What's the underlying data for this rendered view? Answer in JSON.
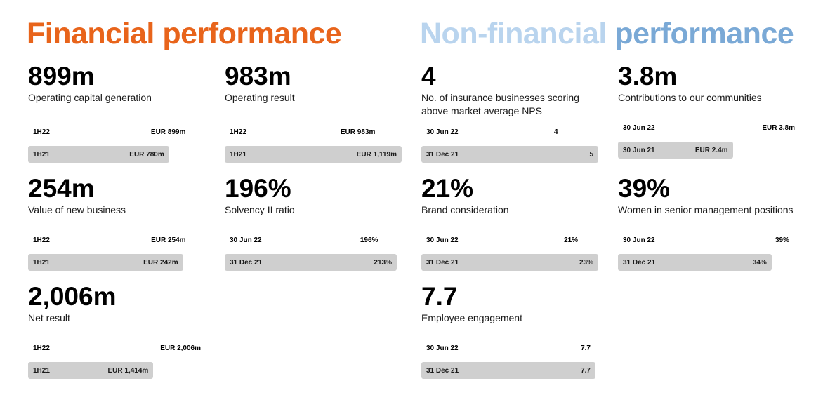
{
  "titles": {
    "financial": "Financial performance",
    "nonfinancial_part1": "Non-financial",
    "nonfinancial_part2": "performance"
  },
  "colors": {
    "financial_accent": "#e8641b",
    "nonfinancial_light": "#b9d4ee",
    "nonfinancial_accent": "#7aa9d6",
    "previous_bar": "#cfcfcf"
  },
  "chart_data": [
    {
      "type": "bar",
      "group": "financial",
      "headline": "899m",
      "label": "Operating capital generation",
      "unit": "EUR m",
      "scale_max": 983,
      "bars": [
        {
          "period": "1H22",
          "value": 899,
          "display": "EUR 899m"
        },
        {
          "period": "1H21",
          "value": 780,
          "display": "EUR 780m"
        }
      ]
    },
    {
      "type": "bar",
      "group": "financial",
      "headline": "983m",
      "label": "Operating result",
      "unit": "EUR m",
      "scale_max": 1119,
      "bars": [
        {
          "period": "1H22",
          "value": 983,
          "display": "EUR 983m"
        },
        {
          "period": "1H21",
          "value": 1119,
          "display": "EUR 1,119m"
        }
      ]
    },
    {
      "type": "bar",
      "group": "financial",
      "headline": "254m",
      "label": "Value of new business",
      "unit": "EUR m",
      "scale_max": 283,
      "bars": [
        {
          "period": "1H22",
          "value": 254,
          "display": "EUR 254m"
        },
        {
          "period": "1H21",
          "value": 242,
          "display": "EUR 242m"
        }
      ]
    },
    {
      "type": "bar",
      "group": "financial",
      "headline": "196%",
      "label": "Solvency II ratio",
      "unit": "%",
      "scale_max": 213,
      "bars": [
        {
          "period": "30 Jun 22",
          "value": 196,
          "display": "196%"
        },
        {
          "period": "31 Dec 21",
          "value": 213,
          "display": "213%"
        }
      ]
    },
    {
      "type": "bar",
      "group": "financial",
      "headline": "2,006m",
      "label": "Net result",
      "unit": "EUR m",
      "scale_max": 2006,
      "bars": [
        {
          "period": "1H22",
          "value": 2006,
          "display": "EUR 2,006m"
        },
        {
          "period": "1H21",
          "value": 1414,
          "display": "EUR 1,414m"
        }
      ]
    },
    {
      "type": "bar",
      "group": "nonfinancial",
      "headline": "4",
      "label": "No. of insurance businesses scoring above market average NPS",
      "label_lines": [
        "No. of insurance businesses scoring",
        "above market average NPS"
      ],
      "unit": "count",
      "scale_max": 5,
      "bars": [
        {
          "period": "30 Jun 22",
          "value": 4,
          "display": "4"
        },
        {
          "period": "31 Dec 21",
          "value": 5,
          "display": "5"
        }
      ]
    },
    {
      "type": "bar",
      "group": "nonfinancial",
      "headline": "3.8m",
      "label": "Contributions to our communities",
      "unit": "EUR m",
      "scale_max": 3.8,
      "bars": [
        {
          "period": "30 Jun 22",
          "value": 3.8,
          "display": "EUR 3.8m"
        },
        {
          "period": "30 Jun 21",
          "value": 2.4,
          "display": "EUR 2.4m"
        }
      ]
    },
    {
      "type": "bar",
      "group": "nonfinancial",
      "headline": "21%",
      "label": "Brand consideration",
      "unit": "%",
      "scale_max": 23,
      "bars": [
        {
          "period": "30 Jun 22",
          "value": 21,
          "display": "21%"
        },
        {
          "period": "31 Dec 21",
          "value": 23,
          "display": "23%"
        }
      ]
    },
    {
      "type": "bar",
      "group": "nonfinancial",
      "headline": "39%",
      "label": "Women in senior management positions",
      "unit": "%",
      "scale_max": 39,
      "bars": [
        {
          "period": "30 Jun 22",
          "value": 39,
          "display": "39%"
        },
        {
          "period": "31 Dec 21",
          "value": 34,
          "display": "34%"
        }
      ]
    },
    {
      "type": "bar",
      "group": "nonfinancial",
      "headline": "7.7",
      "label": "Employee engagement",
      "unit": "score",
      "scale_max": 7.7,
      "bars": [
        {
          "period": "30 Jun 22",
          "value": 7.7,
          "display": "7.7"
        },
        {
          "period": "31 Dec 21",
          "value": 7.7,
          "display": "7.7"
        }
      ]
    }
  ]
}
